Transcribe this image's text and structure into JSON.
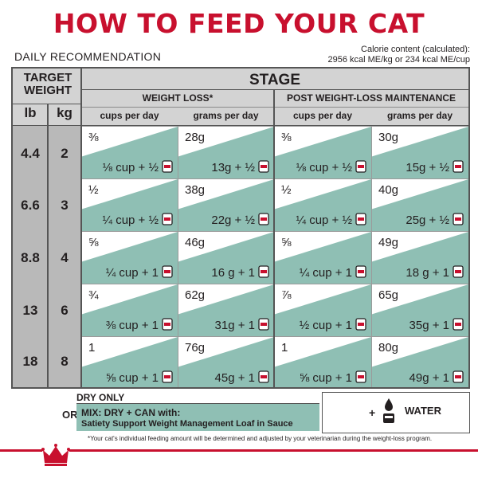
{
  "title": "HOW TO FEED YOUR CAT",
  "daily_recommendation": "DAILY RECOMMENDATION",
  "calorie": {
    "line1": "Calorie content (calculated):",
    "line2": "2956 kcal ME/kg or 234 kcal ME/cup"
  },
  "table": {
    "target_weight_label": "TARGET WEIGHT",
    "lb_label": "lb",
    "kg_label": "kg",
    "stage_label": "STAGE",
    "weight_loss_label": "WEIGHT LOSS*",
    "maintenance_label": "POST WEIGHT-LOSS MAINTENANCE",
    "cups_label": "cups per day",
    "grams_label": "grams per day",
    "rows": [
      {
        "lb": "4.4",
        "kg": "2",
        "wl_cups": "⅜",
        "wl_cups_mix": "⅛ cup + ½",
        "wl_grams": "28g",
        "wl_grams_mix": "13g + ½",
        "m_cups": "⅜",
        "m_cups_mix": "⅛ cup + ½",
        "m_grams": "30g",
        "m_grams_mix": "15g + ½"
      },
      {
        "lb": "6.6",
        "kg": "3",
        "wl_cups": "½",
        "wl_cups_mix": "¼ cup + ½",
        "wl_grams": "38g",
        "wl_grams_mix": "22g + ½",
        "m_cups": "½",
        "m_cups_mix": "¼ cup + ½",
        "m_grams": "40g",
        "m_grams_mix": "25g + ½"
      },
      {
        "lb": "8.8",
        "kg": "4",
        "wl_cups": "⅝",
        "wl_cups_mix": "¼ cup + 1",
        "wl_grams": "46g",
        "wl_grams_mix": "16 g + 1",
        "m_cups": "⅝",
        "m_cups_mix": "¼ cup + 1",
        "m_grams": "49g",
        "m_grams_mix": "18 g + 1"
      },
      {
        "lb": "13",
        "kg": "6",
        "wl_cups": "¾",
        "wl_cups_mix": "⅜ cup + 1",
        "wl_grams": "62g",
        "wl_grams_mix": "31g + 1",
        "m_cups": "⅞",
        "m_cups_mix": "½ cup + 1",
        "m_grams": "65g",
        "m_grams_mix": "35g + 1"
      },
      {
        "lb": "18",
        "kg": "8",
        "wl_cups": "1",
        "wl_cups_mix": "⅝ cup + 1",
        "wl_grams": "76g",
        "wl_grams_mix": "45g + 1",
        "m_cups": "1",
        "m_cups_mix": "⅝ cup + 1",
        "m_grams": "80g",
        "m_grams_mix": "49g + 1"
      }
    ]
  },
  "legend": {
    "dry_only": "DRY ONLY",
    "or": "OR",
    "mix_line1": "MIX: DRY + CAN with:",
    "mix_line2": "Satiety Support Weight Management Loaf in Sauce",
    "plus": "+",
    "water": "WATER"
  },
  "footnote": "*Your cat's individual feeding amount will be determined and adjusted by your veterinarian during the weight-loss program.",
  "colors": {
    "brand_red": "#c8102e",
    "teal": "#8fbfb4",
    "header_gray": "#d3d3d3",
    "weight_gray": "#b9b9b9"
  },
  "icons": [
    "can-icon",
    "water-bowl-icon",
    "royal-canin-crown-logo"
  ]
}
